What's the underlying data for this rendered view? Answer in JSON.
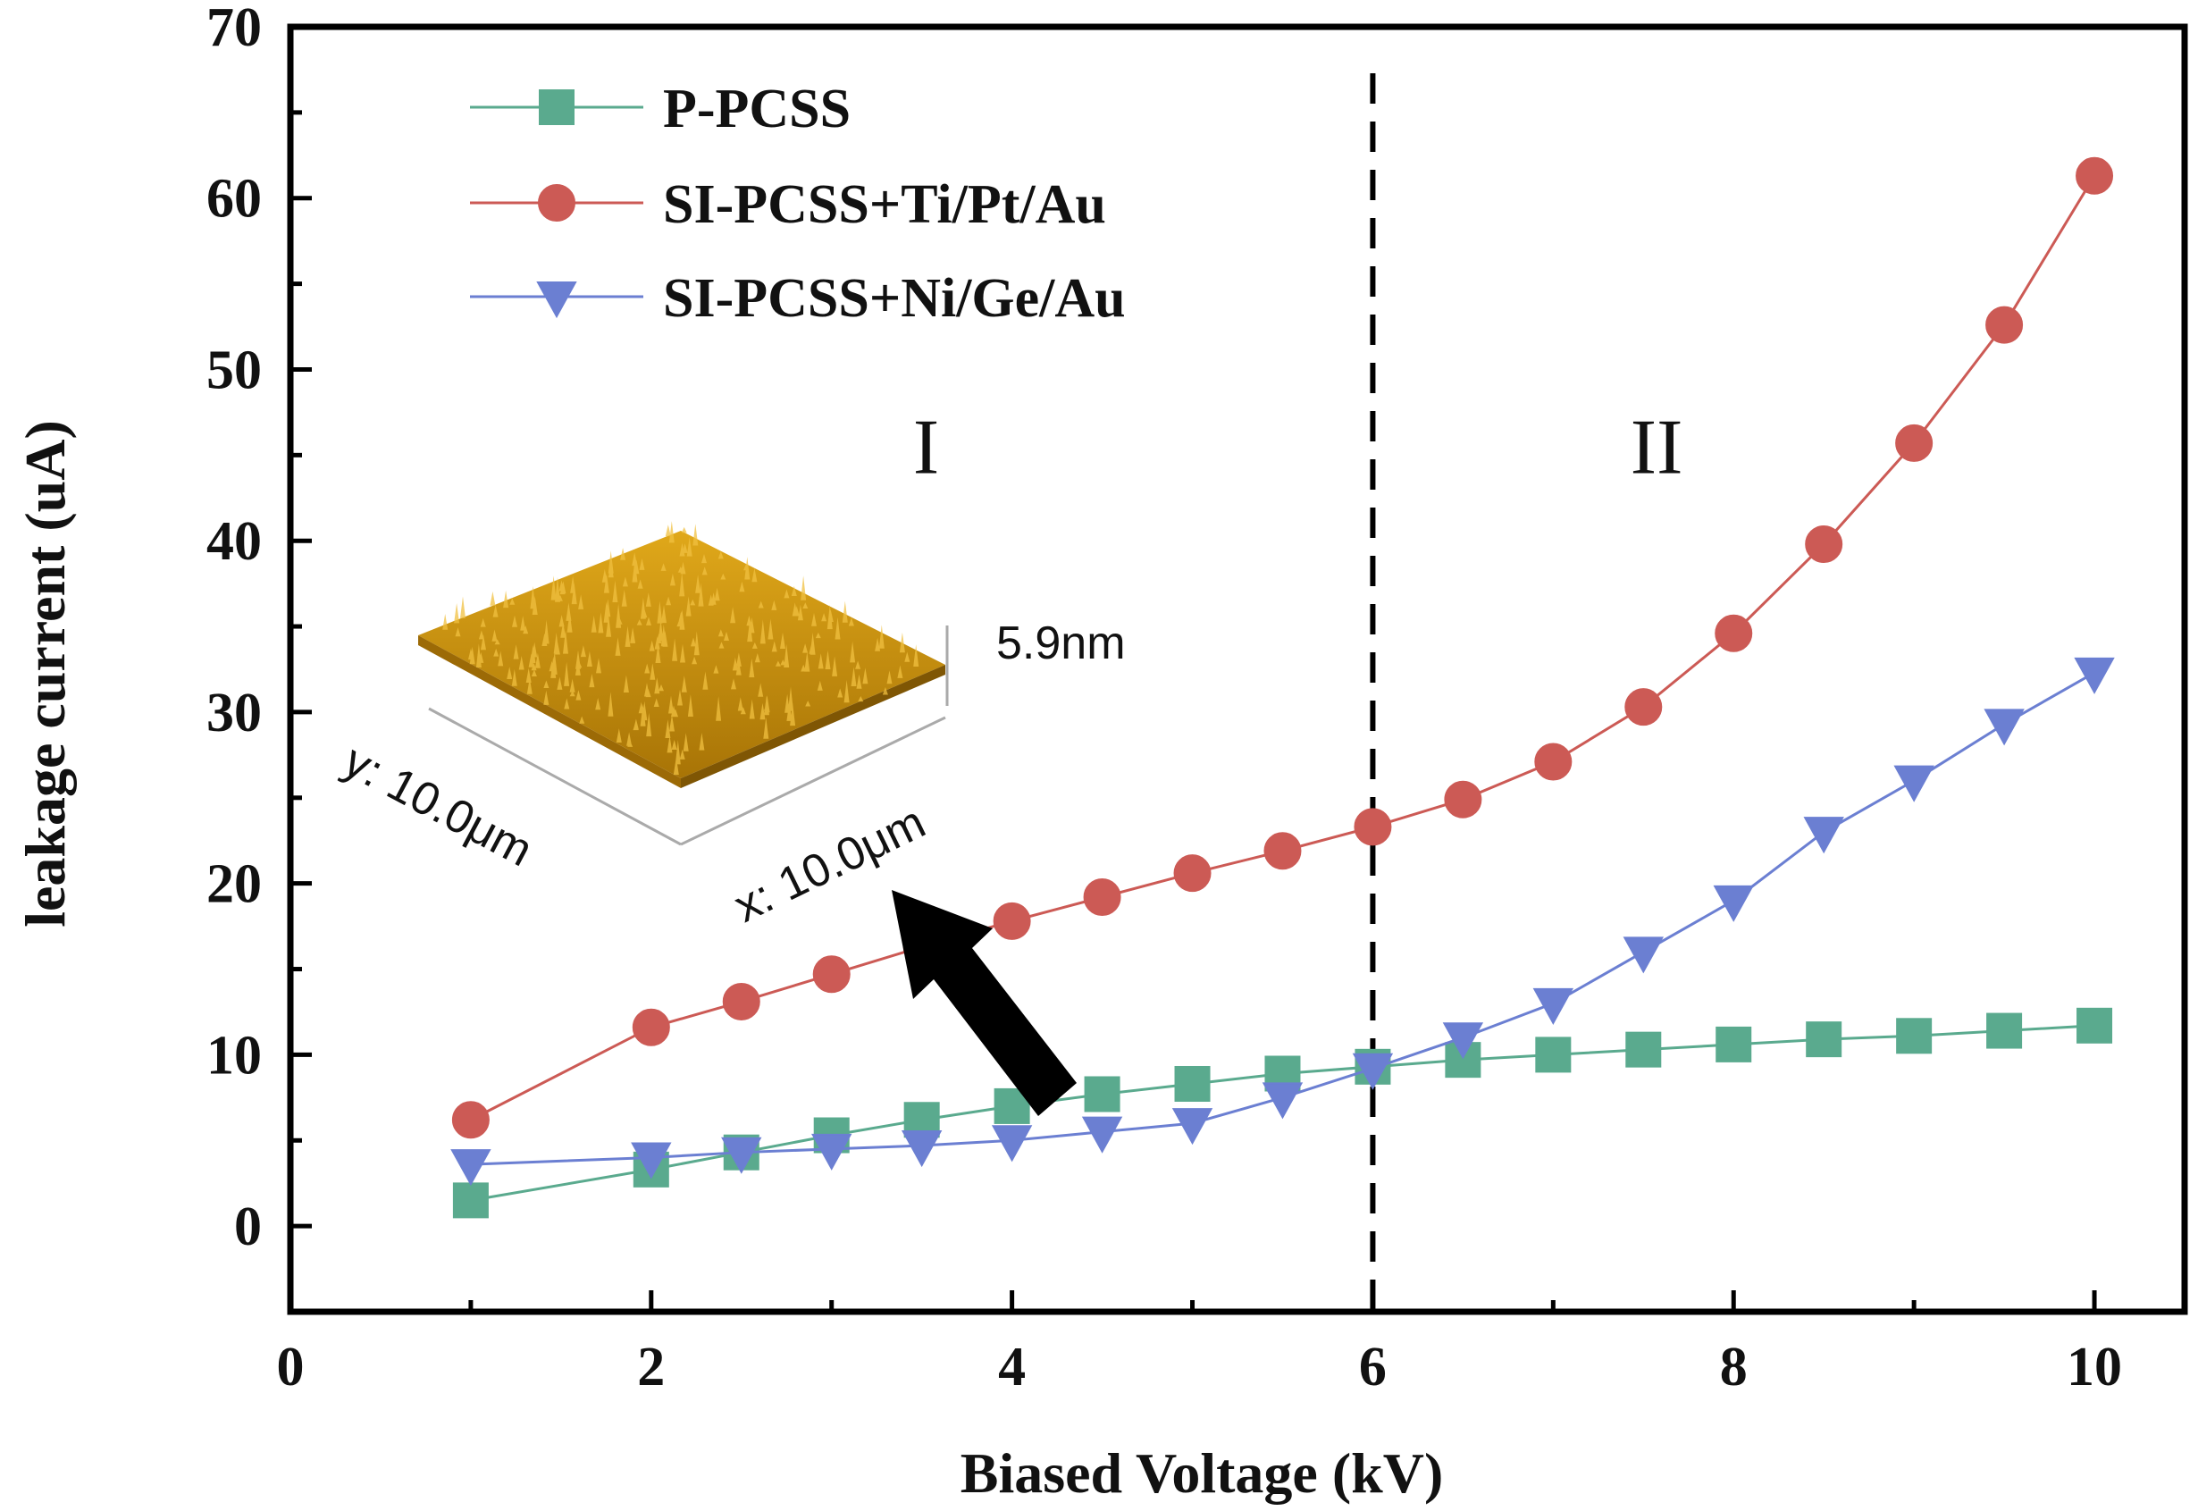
{
  "chart_data": {
    "type": "line",
    "xlabel": "Biased Voltage (kV)",
    "ylabel": "leakage current (uA)",
    "xlim": [
      0,
      10.5
    ],
    "ylim": [
      -5,
      70
    ],
    "xticks": [
      0,
      2,
      4,
      6,
      8,
      10
    ],
    "yticks": [
      0,
      10,
      20,
      30,
      40,
      50,
      60,
      70
    ],
    "grid": false,
    "legend_position": "top-left",
    "vline": {
      "x": 6,
      "style": "dashed"
    },
    "regions": [
      {
        "label": "I",
        "x": 3.4,
        "y": 45.5
      },
      {
        "label": "II",
        "x": 7.4,
        "y": 45.5
      }
    ],
    "series": [
      {
        "name": "P-PCSS",
        "color": "#5aaa8e",
        "marker": "square",
        "x": [
          1,
          2,
          2.5,
          3,
          3.5,
          4,
          4.5,
          5,
          5.5,
          6,
          6.5,
          7,
          7.5,
          8,
          8.5,
          9,
          9.5,
          10
        ],
        "y": [
          1.5,
          3.3,
          4.3,
          5.3,
          6.2,
          7.0,
          7.7,
          8.3,
          8.9,
          9.3,
          9.7,
          10.0,
          10.3,
          10.6,
          10.9,
          11.1,
          11.4,
          11.7
        ]
      },
      {
        "name": "SI-PCSS+Ti/Pt/Au",
        "color": "#cc5a55",
        "marker": "circle",
        "x": [
          1,
          2,
          2.5,
          3,
          3.5,
          4,
          4.5,
          5,
          5.5,
          6,
          6.5,
          7,
          7.5,
          8,
          8.5,
          9,
          9.5,
          10
        ],
        "y": [
          6.2,
          11.6,
          13.1,
          14.7,
          16.3,
          17.8,
          19.2,
          20.6,
          21.9,
          23.3,
          24.9,
          27.1,
          30.3,
          34.6,
          39.8,
          45.7,
          52.6,
          61.3
        ]
      },
      {
        "name": "SI-PCSS+Ni/Ge/Au",
        "color": "#6b7fd2",
        "marker": "triangle-down",
        "x": [
          1,
          2,
          2.5,
          3,
          3.5,
          4,
          4.5,
          5,
          5.5,
          6,
          6.5,
          7,
          7.5,
          8,
          8.5,
          9,
          9.5,
          10
        ],
        "y": [
          3.6,
          4.0,
          4.3,
          4.5,
          4.7,
          5.0,
          5.5,
          6.0,
          7.5,
          9.2,
          11.0,
          13.0,
          16.0,
          19.0,
          23.0,
          26.0,
          29.3,
          32.3
        ]
      }
    ],
    "inset": {
      "description_labels": {
        "height": "5.9nm",
        "y_extent": "y: 10.0μm",
        "x_extent": "x: 10.0μm"
      },
      "surface_color": "#c8900a"
    }
  }
}
